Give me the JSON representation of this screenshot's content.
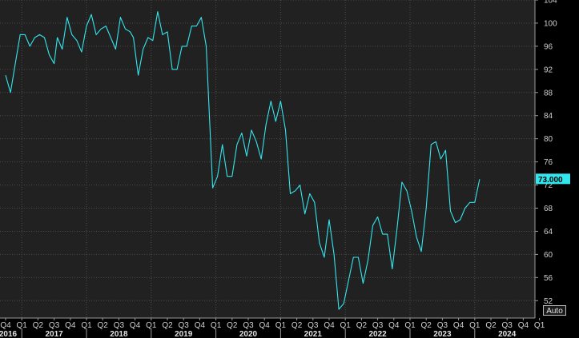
{
  "chart_data": {
    "type": "line",
    "title": "",
    "xlabel": "",
    "ylabel": "",
    "ylim": [
      49,
      104
    ],
    "y_ticks": [
      52,
      56,
      60,
      64,
      68,
      72,
      76,
      80,
      84,
      88,
      92,
      96,
      100,
      104
    ],
    "grid": true,
    "quarter_labels": [
      "Q4",
      "Q1",
      "Q2",
      "Q3",
      "Q4",
      "Q1",
      "Q2",
      "Q3",
      "Q4",
      "Q1",
      "Q2",
      "Q3",
      "Q4",
      "Q1",
      "Q2",
      "Q3",
      "Q4",
      "Q1",
      "Q2",
      "Q3",
      "Q4",
      "Q1",
      "Q2",
      "Q3",
      "Q4",
      "Q1",
      "Q2",
      "Q3",
      "Q4",
      "Q1",
      "Q2",
      "Q3",
      "Q4",
      "Q1"
    ],
    "year_labels": [
      {
        "label": "2016",
        "start": 0,
        "end": 1
      },
      {
        "label": "2017",
        "start": 1,
        "end": 5
      },
      {
        "label": "2018",
        "start": 5,
        "end": 9
      },
      {
        "label": "2019",
        "start": 9,
        "end": 13
      },
      {
        "label": "2020",
        "start": 13,
        "end": 17
      },
      {
        "label": "2021",
        "start": 17,
        "end": 21
      },
      {
        "label": "2022",
        "start": 21,
        "end": 25
      },
      {
        "label": "2023",
        "start": 25,
        "end": 29
      },
      {
        "label": "2024",
        "start": 29,
        "end": 33
      }
    ],
    "series": [
      {
        "color": "#33e6ee",
        "points": [
          [
            0.0,
            91
          ],
          [
            0.3,
            88
          ],
          [
            0.6,
            93
          ],
          [
            0.9,
            98
          ],
          [
            1.2,
            98
          ],
          [
            1.5,
            96
          ],
          [
            1.8,
            97.5
          ],
          [
            2.1,
            98
          ],
          [
            2.4,
            97.5
          ],
          [
            2.7,
            94.5
          ],
          [
            3.0,
            93
          ],
          [
            3.2,
            97.5
          ],
          [
            3.5,
            95.5
          ],
          [
            3.8,
            101
          ],
          [
            4.1,
            98
          ],
          [
            4.4,
            97
          ],
          [
            4.7,
            95
          ],
          [
            5.0,
            99.5
          ],
          [
            5.3,
            101.5
          ],
          [
            5.6,
            98
          ],
          [
            5.9,
            99
          ],
          [
            6.2,
            99.5
          ],
          [
            6.5,
            97.5
          ],
          [
            6.8,
            95.5
          ],
          [
            7.1,
            101
          ],
          [
            7.4,
            99
          ],
          [
            7.7,
            98.5
          ],
          [
            7.9,
            97.5
          ],
          [
            8.2,
            91
          ],
          [
            8.5,
            95.5
          ],
          [
            8.8,
            97.5
          ],
          [
            9.1,
            97
          ],
          [
            9.4,
            102
          ],
          [
            9.7,
            98
          ],
          [
            10.0,
            98.5
          ],
          [
            10.3,
            92
          ],
          [
            10.6,
            92
          ],
          [
            10.9,
            96
          ],
          [
            11.2,
            96
          ],
          [
            11.5,
            99.5
          ],
          [
            11.8,
            99.5
          ],
          [
            12.1,
            101
          ],
          [
            12.4,
            96
          ],
          [
            12.8,
            71.5
          ],
          [
            13.1,
            73.5
          ],
          [
            13.4,
            79
          ],
          [
            13.7,
            73.5
          ],
          [
            14.0,
            73.5
          ],
          [
            14.3,
            79
          ],
          [
            14.6,
            81
          ],
          [
            14.9,
            77
          ],
          [
            15.2,
            81.5
          ],
          [
            15.5,
            79.5
          ],
          [
            15.8,
            76.5
          ],
          [
            16.1,
            82.5
          ],
          [
            16.4,
            86.5
          ],
          [
            16.7,
            83
          ],
          [
            17.0,
            86.5
          ],
          [
            17.3,
            81.5
          ],
          [
            17.6,
            70.5
          ],
          [
            17.9,
            71
          ],
          [
            18.2,
            72
          ],
          [
            18.5,
            67
          ],
          [
            18.8,
            70.5
          ],
          [
            19.1,
            69
          ],
          [
            19.4,
            62
          ],
          [
            19.7,
            59.5
          ],
          [
            20.0,
            66
          ],
          [
            20.3,
            60
          ],
          [
            20.6,
            50.5
          ],
          [
            20.9,
            51.5
          ],
          [
            21.2,
            55.5
          ],
          [
            21.5,
            59.5
          ],
          [
            21.8,
            59.5
          ],
          [
            22.1,
            55
          ],
          [
            22.4,
            59
          ],
          [
            22.7,
            65
          ],
          [
            23.0,
            66.5
          ],
          [
            23.3,
            63.5
          ],
          [
            23.6,
            63.5
          ],
          [
            23.9,
            57.5
          ],
          [
            24.2,
            64.5
          ],
          [
            24.5,
            72.5
          ],
          [
            24.8,
            71
          ],
          [
            25.1,
            67.5
          ],
          [
            25.4,
            63
          ],
          [
            25.7,
            60.5
          ],
          [
            26.0,
            68
          ],
          [
            26.3,
            79
          ],
          [
            26.6,
            79.5
          ],
          [
            26.9,
            76.5
          ],
          [
            27.2,
            78
          ],
          [
            27.5,
            67.5
          ],
          [
            27.8,
            65.5
          ],
          [
            28.1,
            66
          ],
          [
            28.4,
            68
          ],
          [
            28.7,
            69
          ],
          [
            29.0,
            69
          ],
          [
            29.3,
            73
          ]
        ]
      }
    ],
    "last_value_label": "73.000"
  },
  "controls": {
    "auto_label": "Auto"
  }
}
